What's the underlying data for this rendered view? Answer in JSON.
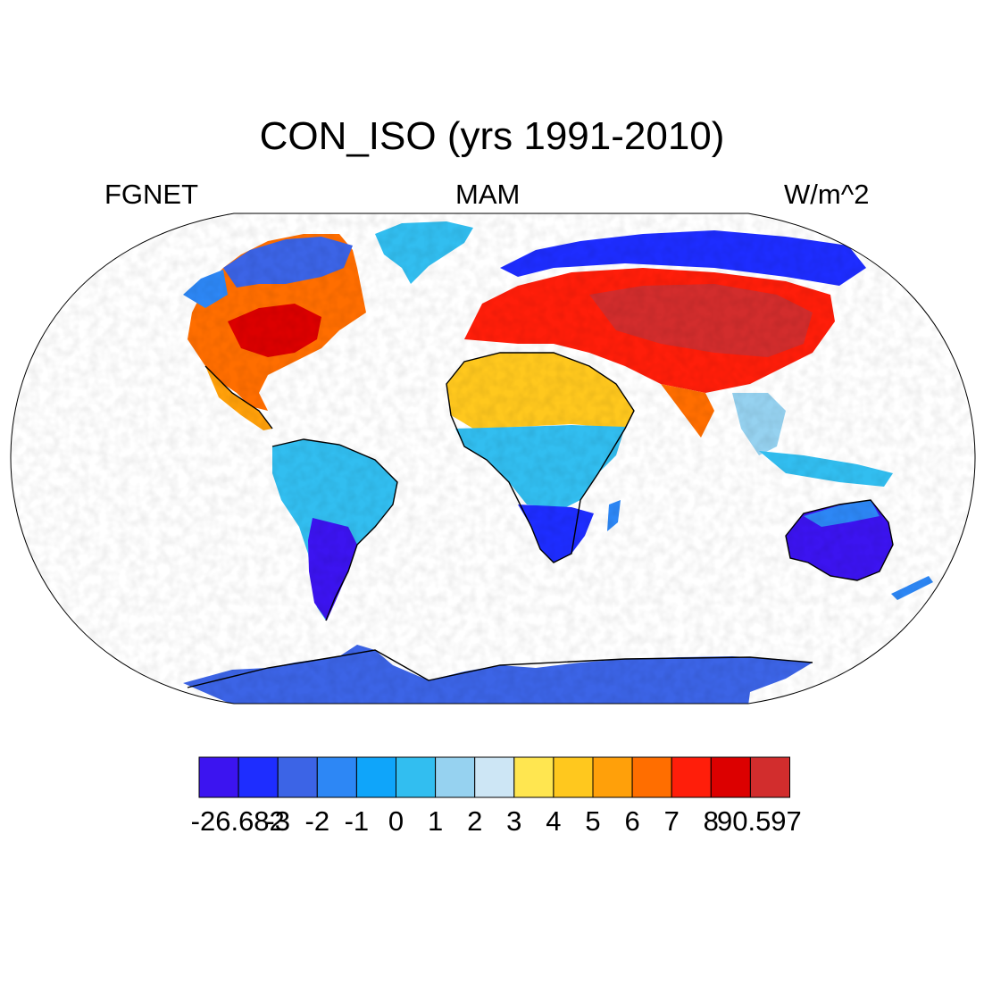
{
  "header": {
    "title": "CON_ISO (yrs 1991-2010)",
    "left_label": "FGNET",
    "center_label": "MAM",
    "right_label": "W/m^2"
  },
  "colorbar": {
    "colors": [
      "#3c14f0",
      "#1e2dff",
      "#3c64e6",
      "#2d87f5",
      "#0fa5fa",
      "#32bef0",
      "#96d2f0",
      "#cde6f5",
      "#ffe650",
      "#ffc81e",
      "#ffa00a",
      "#ff6e00",
      "#ff1e0a",
      "#dc0000",
      "#d22d2d"
    ],
    "labels": [
      "-26.682",
      "-3",
      "-2",
      "-1",
      "0",
      "1",
      "2",
      "3",
      "4",
      "5",
      "6",
      "7",
      "8",
      "90.597"
    ]
  },
  "colors": {
    "coast": "#000000",
    "frame": "#000000",
    "ocean": "#ffffff"
  }
}
